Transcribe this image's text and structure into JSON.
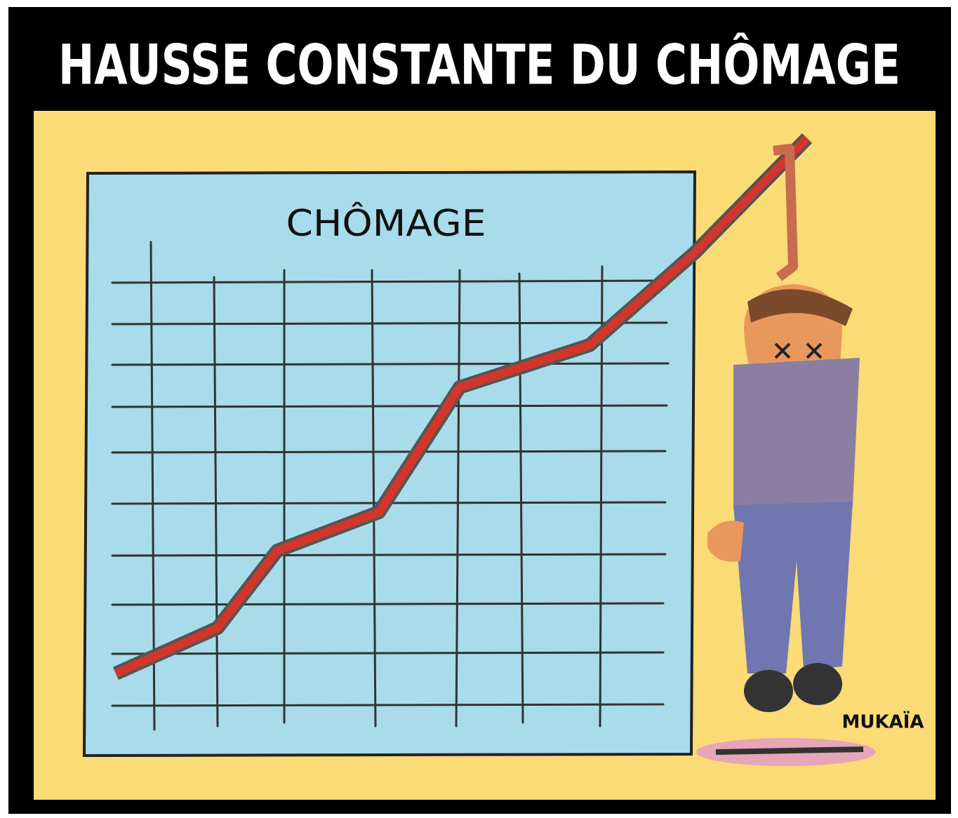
{
  "header": {
    "title": "HAUSSE CONSTANTE DU CHÔMAGE"
  },
  "board": {
    "title": "CHÔMAGE"
  },
  "signature": "MUKAÏA"
}
